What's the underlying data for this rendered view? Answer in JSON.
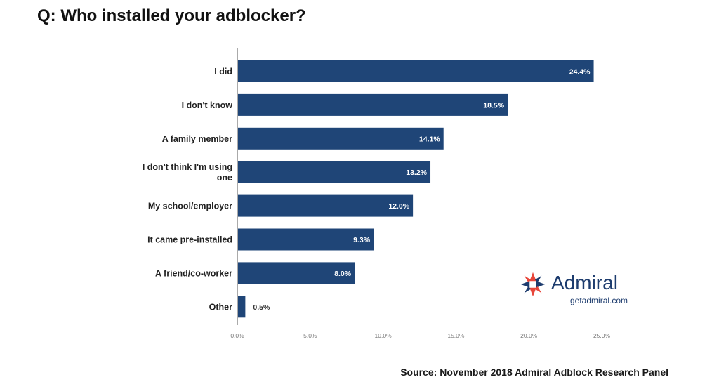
{
  "chart_data": {
    "type": "bar",
    "orientation": "horizontal",
    "title": "Q: Who installed your adblocker?",
    "categories": [
      [
        "I did"
      ],
      [
        "I don't know"
      ],
      [
        "A family member"
      ],
      [
        "I don't think I'm using",
        "one"
      ],
      [
        "My school/employer"
      ],
      [
        "It came pre-installed"
      ],
      [
        "A friend/co-worker"
      ],
      [
        "Other"
      ]
    ],
    "values": [
      24.4,
      18.5,
      14.1,
      13.2,
      12.0,
      9.3,
      8.0,
      0.5
    ],
    "value_labels": [
      "24.4%",
      "18.5%",
      "14.1%",
      "13.2%",
      "12.0%",
      "9.3%",
      "8.0%",
      "0.5%"
    ],
    "xlim": [
      0,
      25
    ],
    "x_ticks": [
      0,
      5,
      10,
      15,
      20,
      25
    ],
    "x_tick_labels": [
      "0.0%",
      "5.0%",
      "10.0%",
      "15.0%",
      "20.0%",
      "25.0%"
    ],
    "bar_color": "#1f4577",
    "grid": false,
    "source": "Source: November 2018 Admiral Adblock Research Panel"
  },
  "logo": {
    "name": "Admiral",
    "url": "getadmiral.com",
    "primary_color": "#1d3c6e",
    "accent_color": "#e8463a"
  }
}
